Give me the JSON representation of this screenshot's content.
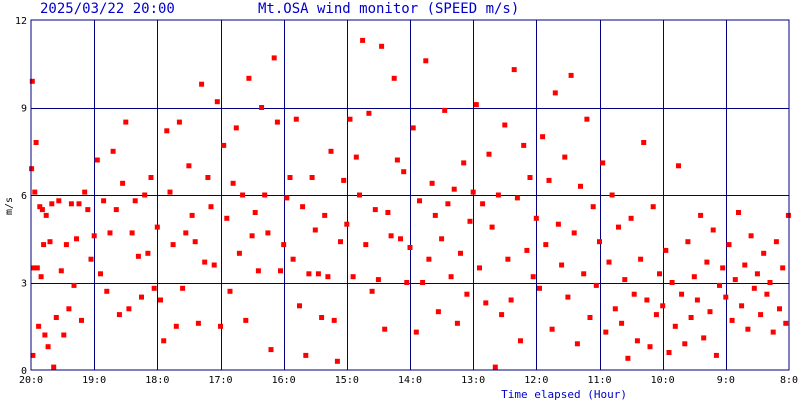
{
  "header": {
    "timestamp": "2025/03/22 20:00",
    "title": "Mt.OSA wind monitor (SPEED m/s)"
  },
  "colors": {
    "background": "#ffffff",
    "frame": "#000080",
    "grid": "#000080",
    "points": "#ff0000",
    "header_text": "#0000cc"
  },
  "chart_data": {
    "type": "scatter",
    "title": "Mt.OSA wind monitor (SPEED m/s)",
    "xlabel": "Time elapsed (Hour)",
    "ylabel": "m/s",
    "xlim": [
      0,
      12
    ],
    "ylim": [
      0,
      12
    ],
    "grid": true,
    "x_ticks": [
      0,
      1,
      2,
      3,
      4,
      5,
      6,
      7,
      8,
      9,
      10,
      11,
      12
    ],
    "x_tick_labels": [
      "20:0",
      "19:0",
      "18:0",
      "17:0",
      "16:0",
      "15:0",
      "14:0",
      "13:0",
      "12:0",
      "11:0",
      "10:0",
      "9:0",
      "8:0"
    ],
    "y_ticks": [
      0,
      3,
      6,
      9,
      12
    ],
    "y_tick_labels": [
      "0",
      "3",
      "6",
      "9",
      "12"
    ],
    "series": [
      {
        "x": [
          0.01,
          0.02,
          0.03,
          0.04,
          0.06,
          0.08,
          0.1,
          0.12,
          0.14,
          0.16,
          0.18,
          0.2,
          0.22,
          0.24,
          0.27,
          0.3,
          0.33,
          0.36,
          0.4,
          0.44,
          0.48,
          0.52,
          0.56,
          0.6,
          0.64,
          0.68,
          0.72,
          0.76,
          0.8,
          0.85,
          0.9,
          0.95,
          1.0,
          1.05,
          1.1,
          1.15,
          1.2,
          1.25,
          1.3,
          1.35,
          1.4,
          1.45,
          1.5,
          1.55,
          1.6,
          1.65,
          1.7,
          1.75,
          1.8,
          1.85,
          1.9,
          1.95,
          2.0,
          2.05,
          2.1,
          2.15,
          2.2,
          2.25,
          2.3,
          2.35,
          2.4,
          2.45,
          2.5,
          2.55,
          2.6,
          2.65,
          2.7,
          2.75,
          2.8,
          2.85,
          2.9,
          2.95,
          3.0,
          3.05,
          3.1,
          3.15,
          3.2,
          3.25,
          3.3,
          3.35,
          3.4,
          3.45,
          3.5,
          3.55,
          3.6,
          3.65,
          3.7,
          3.75,
          3.8,
          3.85,
          3.9,
          3.95,
          4.0,
          4.05,
          4.1,
          4.15,
          4.2,
          4.25,
          4.3,
          4.35,
          4.4,
          4.45,
          4.5,
          4.55,
          4.6,
          4.65,
          4.7,
          4.75,
          4.8,
          4.85,
          4.9,
          4.95,
          5.0,
          5.05,
          5.1,
          5.15,
          5.2,
          5.25,
          5.3,
          5.35,
          5.4,
          5.45,
          5.5,
          5.55,
          5.6,
          5.65,
          5.7,
          5.75,
          5.8,
          5.85,
          5.9,
          5.95,
          6.0,
          6.05,
          6.1,
          6.15,
          6.2,
          6.25,
          6.3,
          6.35,
          6.4,
          6.45,
          6.5,
          6.55,
          6.6,
          6.65,
          6.7,
          6.75,
          6.8,
          6.85,
          6.9,
          6.95,
          7.0,
          7.05,
          7.1,
          7.15,
          7.2,
          7.25,
          7.3,
          7.35,
          7.4,
          7.45,
          7.5,
          7.55,
          7.6,
          7.65,
          7.7,
          7.75,
          7.8,
          7.85,
          7.9,
          7.95,
          8.0,
          8.05,
          8.1,
          8.15,
          8.2,
          8.25,
          8.3,
          8.35,
          8.4,
          8.45,
          8.5,
          8.55,
          8.6,
          8.65,
          8.7,
          8.75,
          8.8,
          8.85,
          8.9,
          8.95,
          9.0,
          9.05,
          9.1,
          9.15,
          9.2,
          9.25,
          9.3,
          9.35,
          9.4,
          9.45,
          9.5,
          9.55,
          9.6,
          9.65,
          9.7,
          9.75,
          9.8,
          9.85,
          9.9,
          9.95,
          10.0,
          10.05,
          10.1,
          10.15,
          10.2,
          10.25,
          10.3,
          10.35,
          10.4,
          10.45,
          10.5,
          10.55,
          10.6,
          10.65,
          10.7,
          10.75,
          10.8,
          10.85,
          10.9,
          10.95,
          11.0,
          11.05,
          11.1,
          11.15,
          11.2,
          11.25,
          11.3,
          11.35,
          11.4,
          11.45,
          11.5,
          11.55,
          11.6,
          11.65,
          11.7,
          11.75,
          11.8,
          11.85,
          11.9,
          11.95,
          11.99
        ],
        "y": [
          6.9,
          9.9,
          0.5,
          3.5,
          6.1,
          7.8,
          3.5,
          1.5,
          5.6,
          3.2,
          5.5,
          4.3,
          1.2,
          5.3,
          0.8,
          4.4,
          5.7,
          0.1,
          1.8,
          5.8,
          3.4,
          1.2,
          4.3,
          2.1,
          5.7,
          2.9,
          4.5,
          5.7,
          1.7,
          6.1,
          5.5,
          3.8,
          4.6,
          7.2,
          3.3,
          5.8,
          2.7,
          4.7,
          7.5,
          5.5,
          1.9,
          6.4,
          8.5,
          2.1,
          4.7,
          5.8,
          3.9,
          2.5,
          6.0,
          4.0,
          6.6,
          2.8,
          4.9,
          2.4,
          1.0,
          8.2,
          6.1,
          4.3,
          1.5,
          8.5,
          2.8,
          4.7,
          7.0,
          5.3,
          4.4,
          1.6,
          9.8,
          3.7,
          6.6,
          5.6,
          3.6,
          9.2,
          1.5,
          7.7,
          5.2,
          2.7,
          6.4,
          8.3,
          4.0,
          6.0,
          1.7,
          10.0,
          4.6,
          5.4,
          3.4,
          9.0,
          6.0,
          4.7,
          0.7,
          10.7,
          8.5,
          3.4,
          4.3,
          5.9,
          6.6,
          3.8,
          8.6,
          2.2,
          5.6,
          0.5,
          3.3,
          6.6,
          4.8,
          3.3,
          1.8,
          5.3,
          3.2,
          7.5,
          1.7,
          0.3,
          4.4,
          6.5,
          5.0,
          8.6,
          3.2,
          7.3,
          6.0,
          11.3,
          4.3,
          8.8,
          2.7,
          5.5,
          3.1,
          11.1,
          1.4,
          5.4,
          4.6,
          10.0,
          7.2,
          4.5,
          6.8,
          3.0,
          4.2,
          8.3,
          1.3,
          5.8,
          3.0,
          10.6,
          3.8,
          6.4,
          5.3,
          2.0,
          4.5,
          8.9,
          5.7,
          3.2,
          6.2,
          1.6,
          4.0,
          7.1,
          2.6,
          5.1,
          6.1,
          9.1,
          3.5,
          5.7,
          2.3,
          7.4,
          4.9,
          0.1,
          6.0,
          1.9,
          8.4,
          3.8,
          2.4,
          10.3,
          5.9,
          1.0,
          7.7,
          4.1,
          6.6,
          3.2,
          5.2,
          2.8,
          8.0,
          4.3,
          6.5,
          1.4,
          9.5,
          5.0,
          3.6,
          7.3,
          2.5,
          10.1,
          4.7,
          0.9,
          6.3,
          3.3,
          8.6,
          1.8,
          5.6,
          2.9,
          4.4,
          7.1,
          1.3,
          3.7,
          6.0,
          2.1,
          4.9,
          1.6,
          3.1,
          0.4,
          5.2,
          2.6,
          1.0,
          3.8,
          7.8,
          2.4,
          0.8,
          5.6,
          1.9,
          3.3,
          2.2,
          4.1,
          0.6,
          3.0,
          1.5,
          7.0,
          2.6,
          0.9,
          4.4,
          1.8,
          3.2,
          2.4,
          5.3,
          1.1,
          3.7,
          2.0,
          4.8,
          0.5,
          2.9,
          3.5,
          2.5,
          4.3,
          1.7,
          3.1,
          5.4,
          2.2,
          3.6,
          1.4,
          4.6,
          2.8,
          3.3,
          1.9,
          4.0,
          2.6,
          3.0,
          1.3,
          4.4,
          2.1,
          3.5,
          1.6,
          5.3
        ]
      }
    ]
  }
}
